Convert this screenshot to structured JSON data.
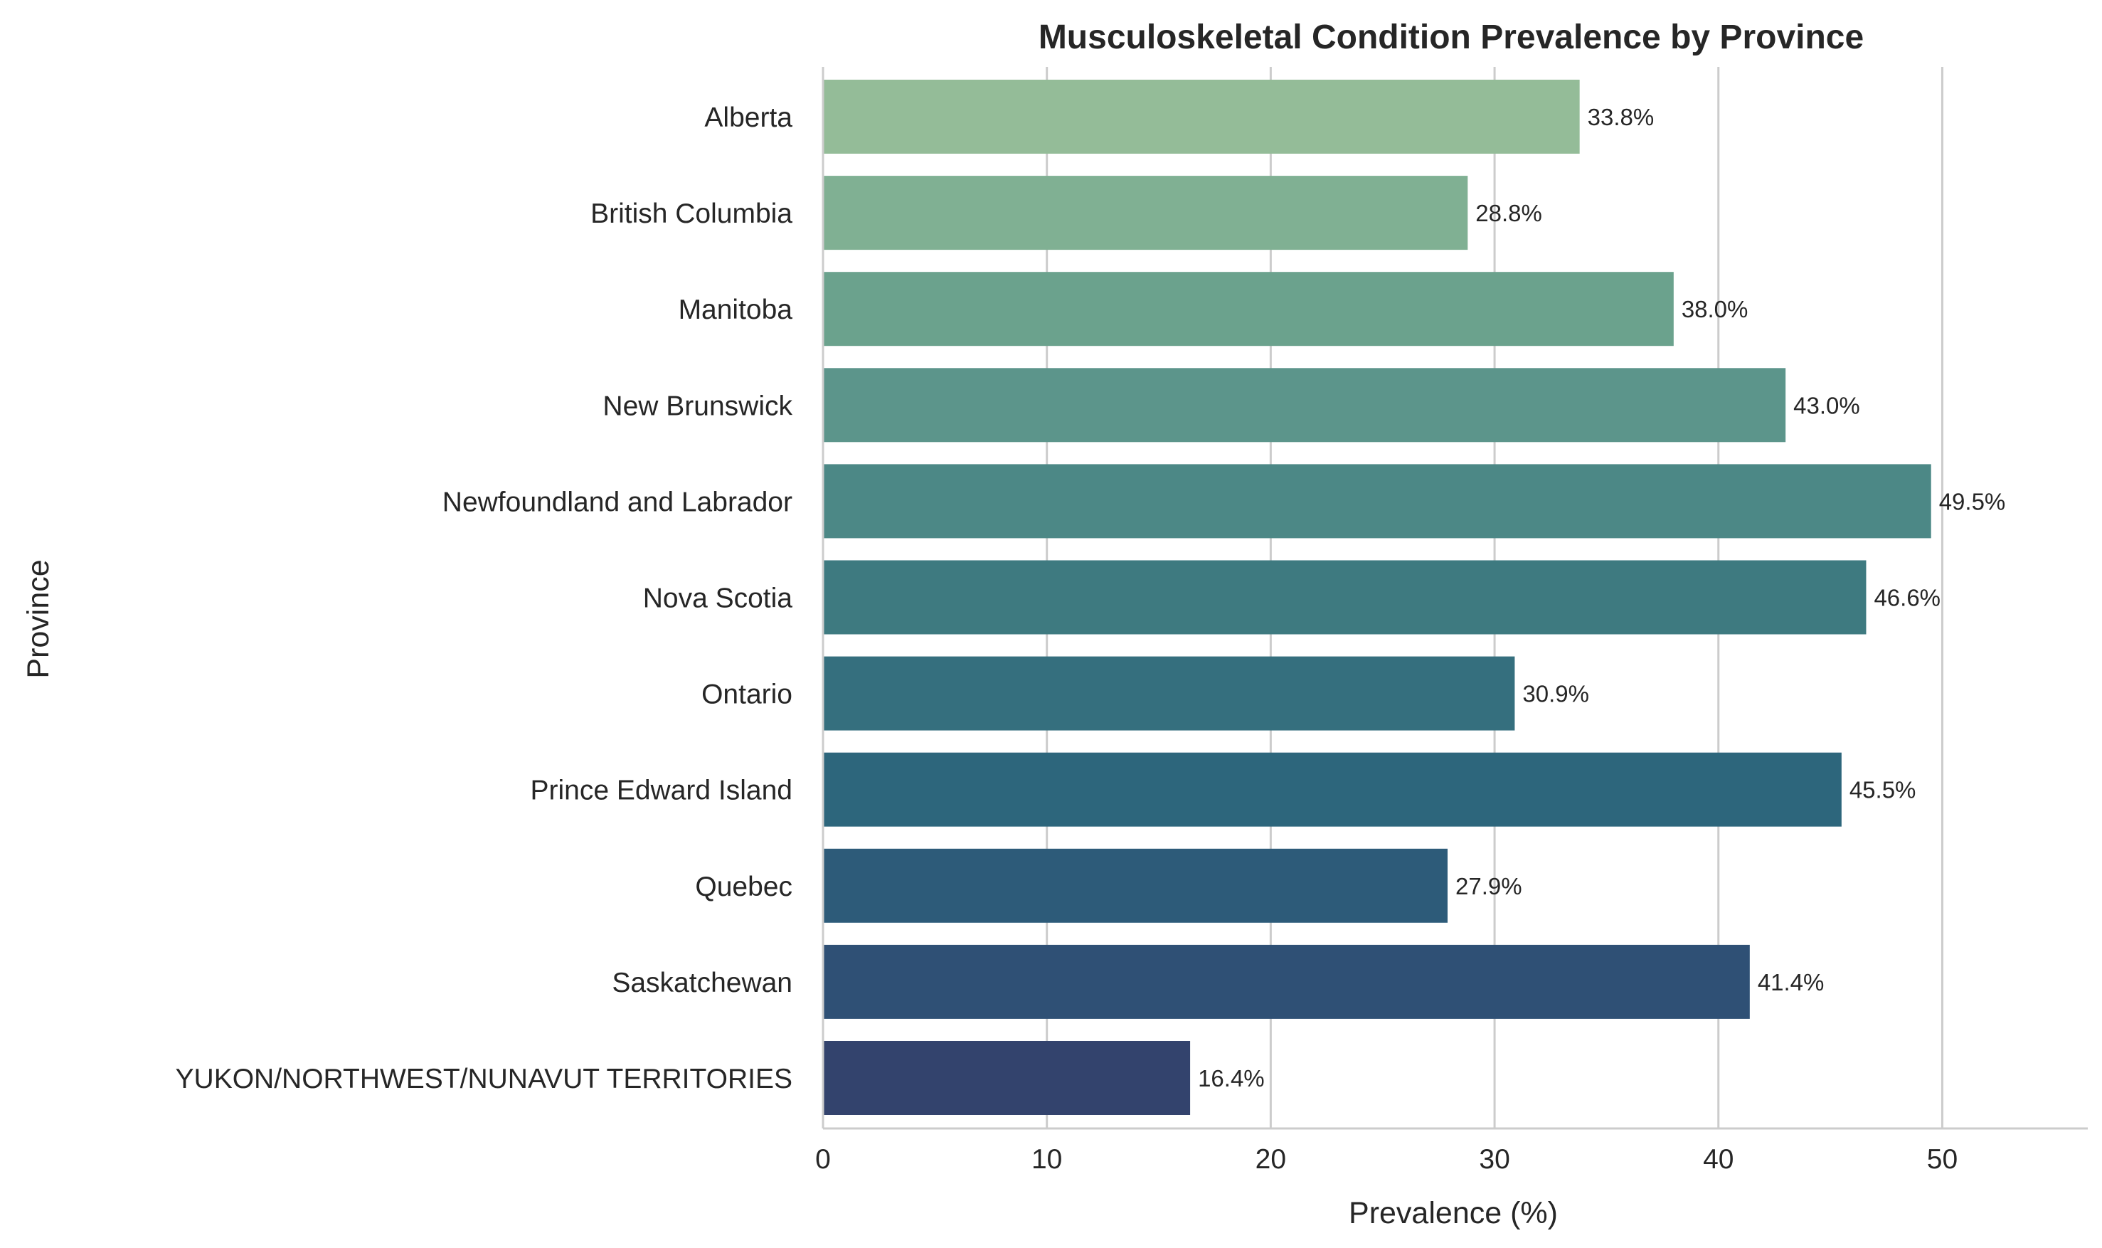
{
  "chart_data": {
    "type": "bar",
    "orientation": "horizontal",
    "title": "Musculoskeletal Condition Prevalence by Province",
    "xlabel": "Prevalence (%)",
    "ylabel": "Province",
    "xlim": [
      0,
      56.5
    ],
    "xticks": [
      0,
      10,
      20,
      30,
      40,
      50
    ],
    "grid": "vertical",
    "categories": [
      "Alberta",
      "British Columbia",
      "Manitoba",
      "New Brunswick",
      "Newfoundland and Labrador",
      "Nova Scotia",
      "Ontario",
      "Prince Edward Island",
      "Quebec",
      "Saskatchewan",
      "YUKON/NORTHWEST/NUNAVUT TERRITORIES"
    ],
    "values": [
      33.8,
      28.8,
      38.0,
      43.0,
      49.5,
      46.6,
      30.9,
      45.5,
      27.9,
      41.4,
      16.4
    ],
    "value_labels": [
      "33.8%",
      "28.8%",
      "38.0%",
      "43.0%",
      "49.5%",
      "46.6%",
      "30.9%",
      "45.5%",
      "27.9%",
      "41.4%",
      "16.4%"
    ],
    "colors": [
      "#94bc98",
      "#80b093",
      "#6ba28d",
      "#5c958b",
      "#4c8886",
      "#3e7a80",
      "#356f7e",
      "#2d667c",
      "#2d5b79",
      "#2f5075",
      "#33436d"
    ],
    "grid_color": "#cccccc",
    "axis_color": "#cccccc"
  }
}
